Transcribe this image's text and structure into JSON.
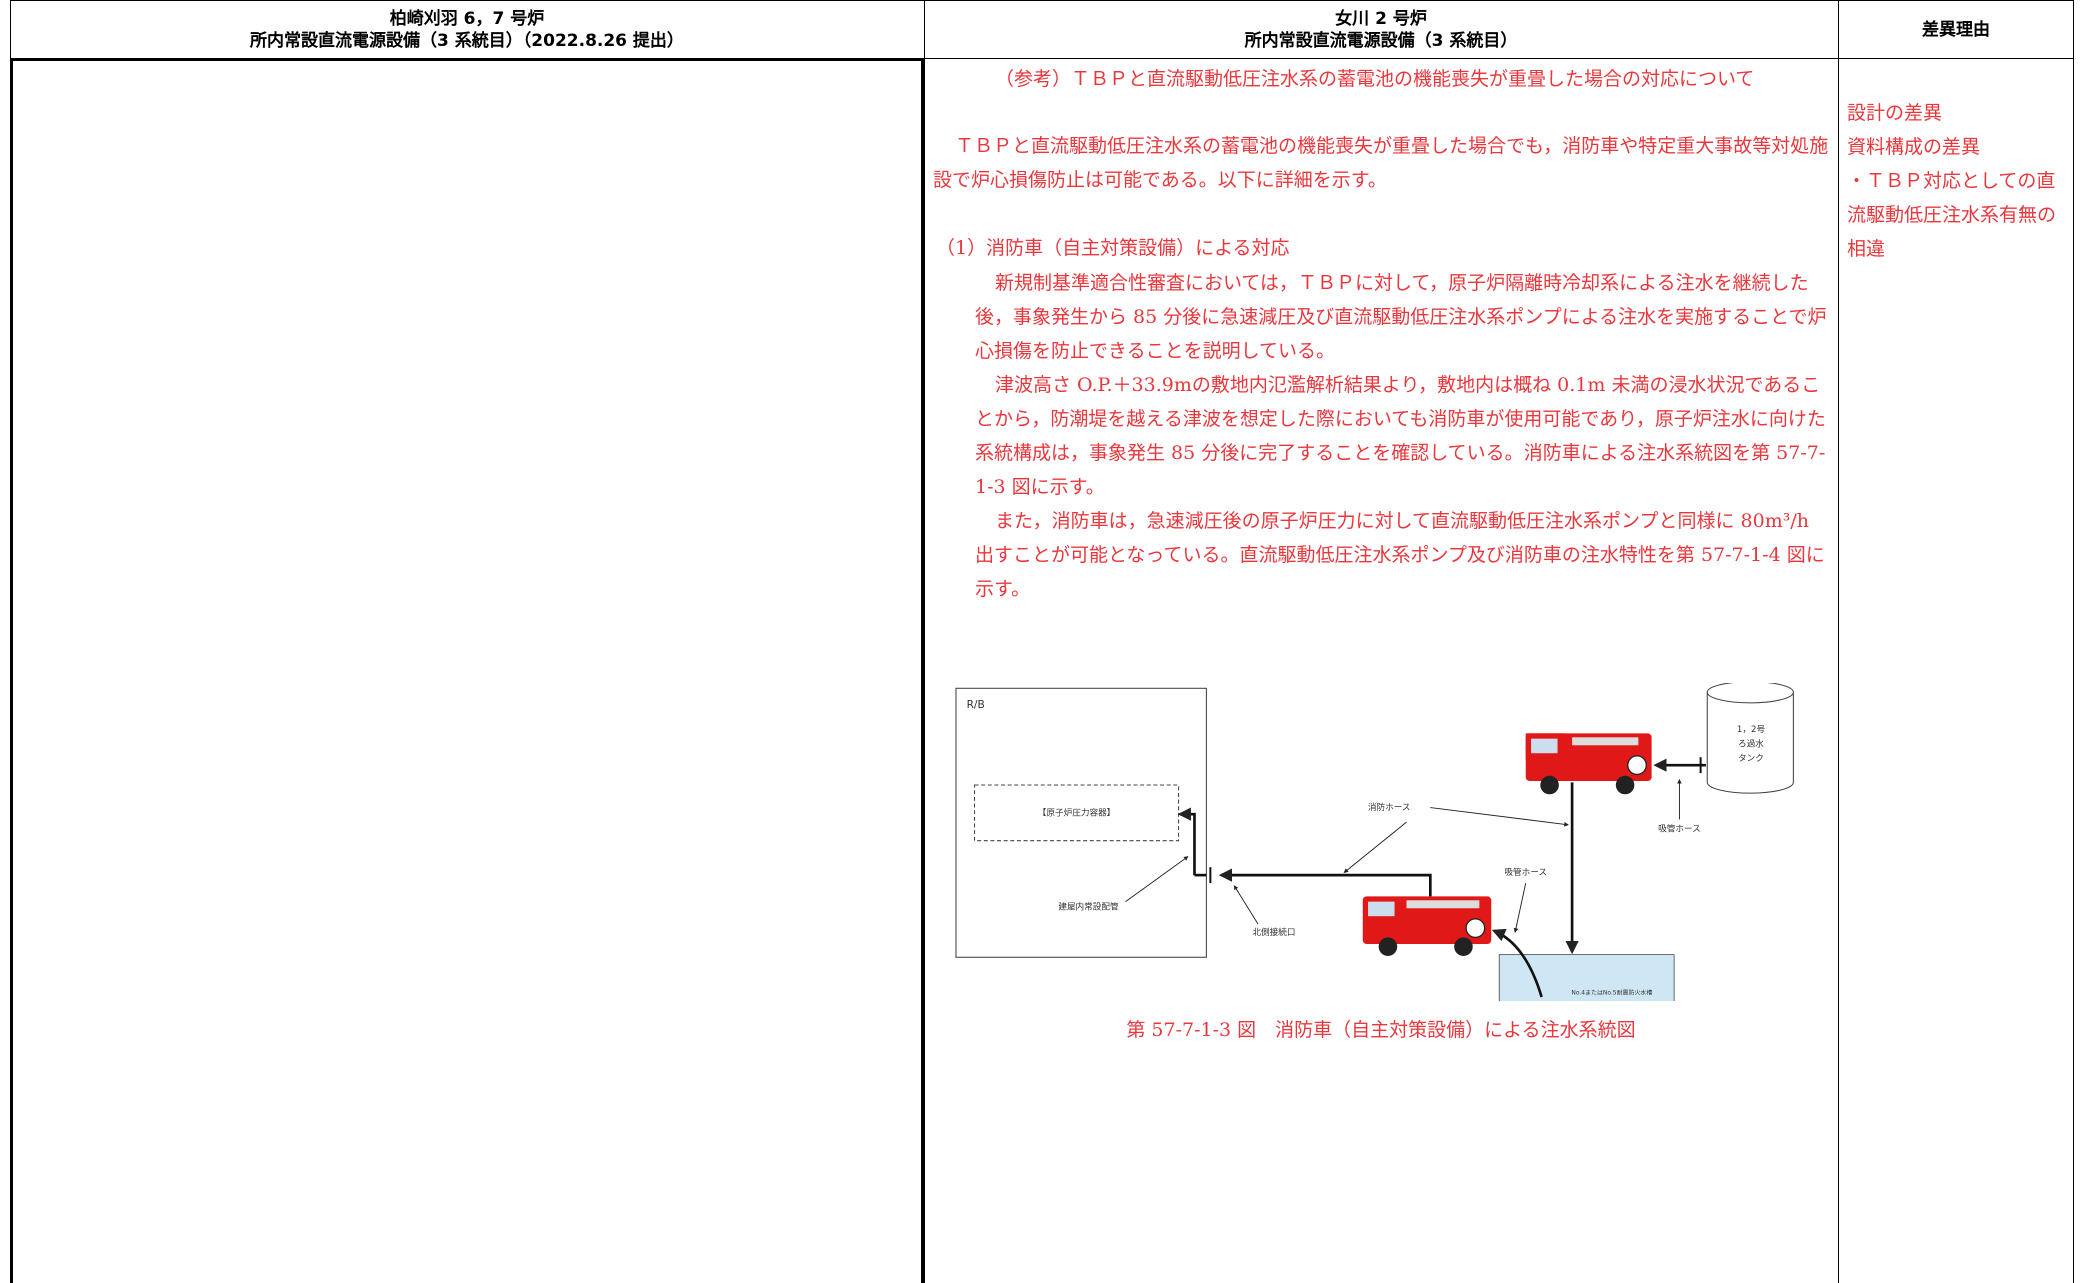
{
  "header": {
    "left": [
      "柏崎刈羽 6，7 号炉",
      "所内常設直流電源設備（3 系統目）（2022.8.26 提出）"
    ],
    "middle": [
      "女川 2 号炉",
      "所内常設直流電源設備（3 系統目）"
    ],
    "right": "差異理由"
  },
  "middle": {
    "title": "（参考）ＴＢＰと直流駆動低圧注水系の蓄電池の機能喪失が重畳した場合の対応について",
    "intro": "ＴＢＰと直流駆動低圧注水系の蓄電池の機能喪失が重畳した場合でも，消防車や特定重大事故等対処施設で炉心損傷防止は可能である。以下に詳細を示す。",
    "section": "（1）消防車（自主対策設備）による対応",
    "paragraphs": [
      "新規制基準適合性審査においては，ＴＢＰに対して，原子炉隔離時冷却系による注水を継続した後，事象発生から 85 分後に急速減圧及び直流駆動低圧注水系ポンプによる注水を実施することで炉心損傷を防止できることを説明している。",
      "津波高さ O.P.＋33.9mの敷地内氾濫解析結果より，敷地内は概ね 0.1m 未満の浸水状況であることから，防潮堤を越える津波を想定した際においても消防車が使用可能であり，原子炉注水に向けた系統構成は，事象発生 85 分後に完了することを確認している。消防車による注水系統図を第 57-7-1-3 図に示す。",
      "また，消防車は，急速減圧後の原子炉圧力に対して直流駆動低圧注水系ポンプと同様に 80m³/h 出すことが可能となっている。直流駆動低圧注水系ポンプ及び消防車の注水特性を第 57-7-1-4 図に示す。"
    ],
    "figure": {
      "building": "R/B",
      "vessel": "【原子炉圧力容器】",
      "fire_hose": "消防ホース",
      "tank": [
        "1，2号",
        "ろ過水",
        "タンク"
      ],
      "suction_hose_1": "吸管ホース",
      "suction_hose_2": "吸管ホース",
      "piping": "建屋内常設配管",
      "connection": "北側接続口",
      "water_tank": "No.4またはNo.5耐震防火水槽"
    },
    "caption": "第 57-7-1-3 図　消防車（自主対策設備）による注水系統図"
  },
  "reasons": [
    "設計の差異",
    "資料構成の差異",
    "・ＴＢＰ対応としての直流駆動低圧注水系有無の相違"
  ]
}
